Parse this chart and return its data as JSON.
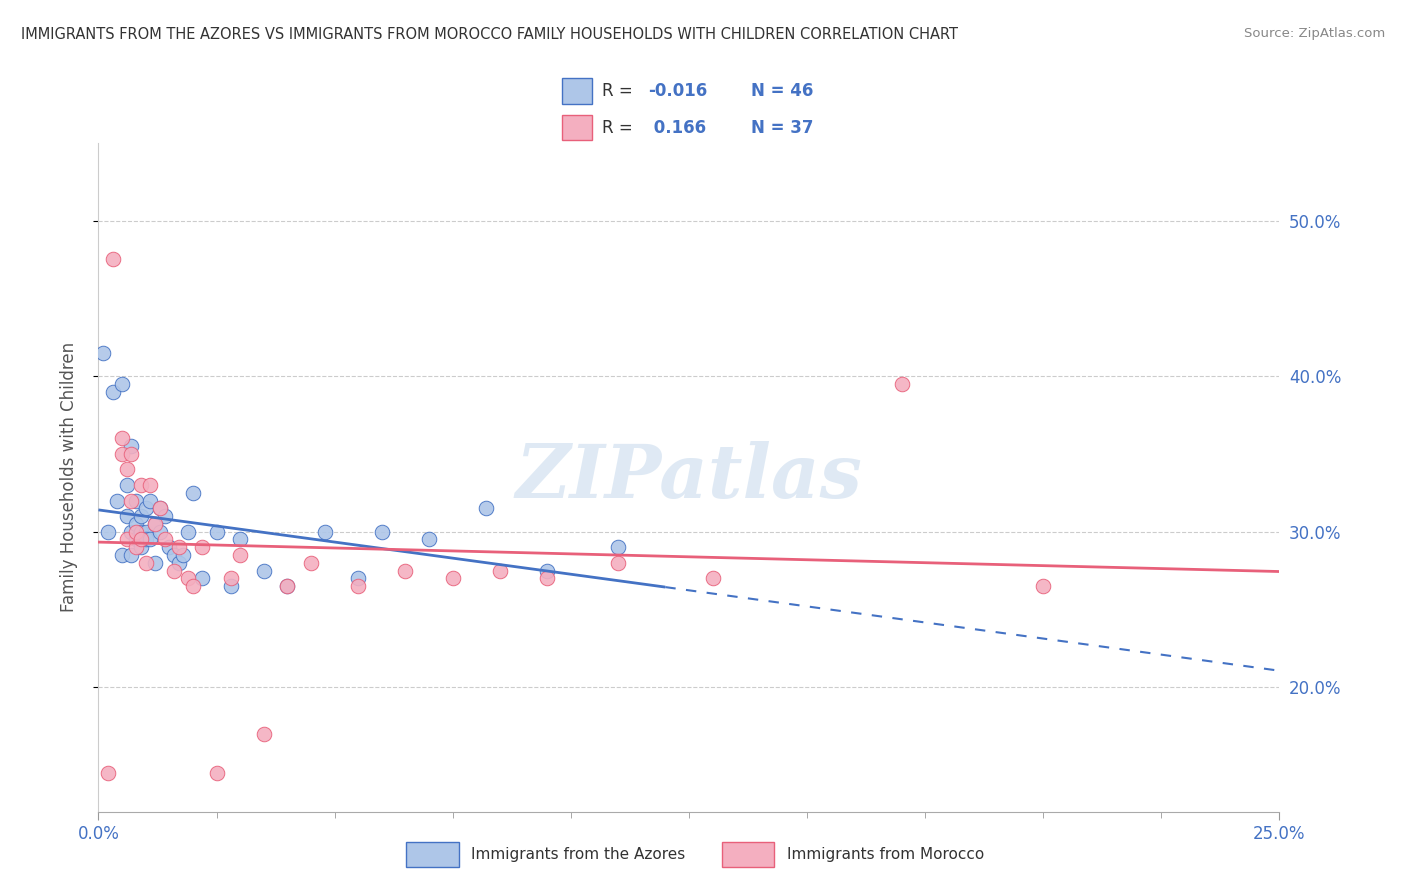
{
  "title": "IMMIGRANTS FROM THE AZORES VS IMMIGRANTS FROM MOROCCO FAMILY HOUSEHOLDS WITH CHILDREN CORRELATION CHART",
  "source": "Source: ZipAtlas.com",
  "ylabel": "Family Households with Children",
  "xlabel_azores": "Immigrants from the Azores",
  "xlabel_morocco": "Immigrants from Morocco",
  "xlim": [
    0.0,
    0.25
  ],
  "ylim": [
    0.12,
    0.55
  ],
  "yticks": [
    0.2,
    0.3,
    0.4,
    0.5
  ],
  "ytick_labels": [
    "20.0%",
    "30.0%",
    "40.0%",
    "50.0%"
  ],
  "xticks": [
    0.0,
    0.25
  ],
  "xtick_labels": [
    "0.0%",
    "25.0%"
  ],
  "color_azores": "#aec6e8",
  "color_morocco": "#f4afc0",
  "line_color_azores": "#4472c4",
  "line_color_morocco": "#e8607a",
  "background_color": "#ffffff",
  "grid_color": "#cccccc",
  "watermark": "ZIPatlas",
  "azores_x": [
    0.001,
    0.002,
    0.003,
    0.004,
    0.005,
    0.005,
    0.006,
    0.006,
    0.007,
    0.007,
    0.007,
    0.008,
    0.008,
    0.008,
    0.009,
    0.009,
    0.009,
    0.01,
    0.01,
    0.01,
    0.011,
    0.011,
    0.012,
    0.012,
    0.013,
    0.013,
    0.014,
    0.015,
    0.016,
    0.017,
    0.018,
    0.019,
    0.02,
    0.022,
    0.025,
    0.028,
    0.03,
    0.035,
    0.04,
    0.048,
    0.055,
    0.06,
    0.07,
    0.082,
    0.095,
    0.11
  ],
  "azores_y": [
    0.415,
    0.3,
    0.39,
    0.32,
    0.395,
    0.285,
    0.31,
    0.33,
    0.285,
    0.3,
    0.355,
    0.295,
    0.305,
    0.32,
    0.3,
    0.29,
    0.31,
    0.3,
    0.315,
    0.295,
    0.295,
    0.32,
    0.28,
    0.305,
    0.3,
    0.315,
    0.31,
    0.29,
    0.285,
    0.28,
    0.285,
    0.3,
    0.325,
    0.27,
    0.3,
    0.265,
    0.295,
    0.275,
    0.265,
    0.3,
    0.27,
    0.3,
    0.295,
    0.315,
    0.275,
    0.29
  ],
  "morocco_x": [
    0.002,
    0.003,
    0.005,
    0.005,
    0.006,
    0.006,
    0.007,
    0.007,
    0.008,
    0.008,
    0.009,
    0.009,
    0.01,
    0.011,
    0.012,
    0.013,
    0.014,
    0.016,
    0.017,
    0.019,
    0.02,
    0.022,
    0.025,
    0.028,
    0.03,
    0.035,
    0.04,
    0.045,
    0.055,
    0.065,
    0.075,
    0.085,
    0.095,
    0.11,
    0.13,
    0.17,
    0.2
  ],
  "morocco_y": [
    0.145,
    0.475,
    0.35,
    0.36,
    0.34,
    0.295,
    0.32,
    0.35,
    0.3,
    0.29,
    0.33,
    0.295,
    0.28,
    0.33,
    0.305,
    0.315,
    0.295,
    0.275,
    0.29,
    0.27,
    0.265,
    0.29,
    0.145,
    0.27,
    0.285,
    0.17,
    0.265,
    0.28,
    0.265,
    0.275,
    0.27,
    0.275,
    0.27,
    0.28,
    0.27,
    0.395,
    0.265
  ],
  "azores_line_x_end": 0.12,
  "r_azores": -0.016,
  "r_morocco": 0.166
}
